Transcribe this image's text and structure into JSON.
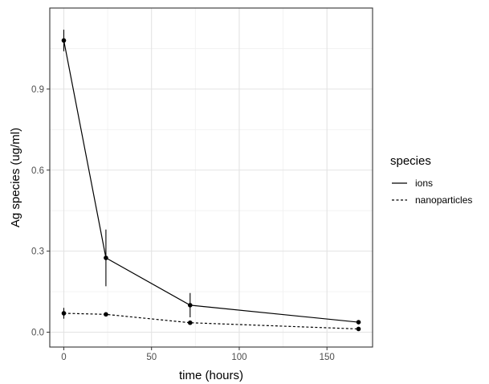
{
  "chart_data": {
    "type": "line",
    "title": "",
    "xlabel": "time (hours)",
    "ylabel": "Ag species (ug/ml)",
    "xlim": [
      -8,
      176
    ],
    "ylim": [
      -0.055,
      1.2
    ],
    "x_ticks": [
      0,
      50,
      100,
      150
    ],
    "x_tick_labels": [
      "0",
      "50",
      "100",
      "150"
    ],
    "y_ticks": [
      0.0,
      0.3,
      0.6,
      0.9
    ],
    "y_tick_labels": [
      "0.0",
      "0.3",
      "0.6",
      "0.9"
    ],
    "grid": true,
    "legend": {
      "title": "species",
      "position": "right"
    },
    "series": [
      {
        "name": "ions",
        "line_style": "solid",
        "color": "#000000",
        "points": [
          {
            "x": 0,
            "y": 1.08,
            "err_low": 1.04,
            "err_high": 1.12
          },
          {
            "x": 24,
            "y": 0.275,
            "err_low": 0.17,
            "err_high": 0.38
          },
          {
            "x": 72,
            "y": 0.1,
            "err_low": 0.055,
            "err_high": 0.145
          },
          {
            "x": 168,
            "y": 0.037,
            "err_low": 0.032,
            "err_high": 0.042
          }
        ]
      },
      {
        "name": "nanoparticles",
        "line_style": "dotted",
        "color": "#000000",
        "points": [
          {
            "x": 0,
            "y": 0.07,
            "err_low": 0.05,
            "err_high": 0.09
          },
          {
            "x": 24,
            "y": 0.066,
            "err_low": 0.063,
            "err_high": 0.069
          },
          {
            "x": 72,
            "y": 0.035,
            "err_low": 0.032,
            "err_high": 0.038
          },
          {
            "x": 168,
            "y": 0.012,
            "err_low": 0.005,
            "err_high": 0.019
          }
        ]
      }
    ]
  }
}
